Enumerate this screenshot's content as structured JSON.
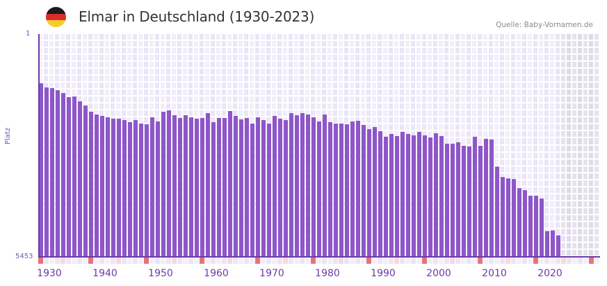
{
  "header": {
    "title": "Elmar in Deutschland (1930-2023)",
    "source": "Quelle: Baby-Vornamen.de",
    "flag_icon": "germany-flag-icon",
    "flag_colors": [
      "#1a1a1a",
      "#dd2a2a",
      "#f5cd2a"
    ]
  },
  "colors": {
    "bar": "#8e56c8",
    "axis": "#6b3aa6",
    "grid_a": "#f2eefb",
    "grid_b": "#ebe5f8",
    "future_a": "#e6e2ef",
    "future_b": "#dfdaea",
    "decade_marker": "#e6737a",
    "mid_marker": "#f5d8e0",
    "strip_a": "#f2eefb",
    "strip_b": "#ebe5f8"
  },
  "chart_data": {
    "type": "bar",
    "title": "Elmar in Deutschland (1930-2023)",
    "subtitle": "Quelle: Baby-Vornamen.de",
    "xlabel": "",
    "ylabel": "Platz",
    "y_inverted": true,
    "ylim": [
      1,
      5453
    ],
    "y_tick_labels": [
      "1",
      "5453"
    ],
    "x_tick_labels": [
      "1930",
      "1940",
      "1950",
      "1960",
      "1970",
      "1980",
      "1990",
      "2000",
      "2010",
      "2020"
    ],
    "x_range": [
      1930,
      2030
    ],
    "grid": true,
    "legend": null,
    "categories": [
      1930,
      1931,
      1932,
      1933,
      1934,
      1935,
      1936,
      1937,
      1938,
      1939,
      1940,
      1941,
      1942,
      1943,
      1944,
      1945,
      1946,
      1947,
      1948,
      1949,
      1950,
      1951,
      1952,
      1953,
      1954,
      1955,
      1956,
      1957,
      1958,
      1959,
      1960,
      1961,
      1962,
      1963,
      1964,
      1965,
      1966,
      1967,
      1968,
      1969,
      1970,
      1971,
      1972,
      1973,
      1974,
      1975,
      1976,
      1977,
      1978,
      1979,
      1980,
      1981,
      1982,
      1983,
      1984,
      1985,
      1986,
      1987,
      1988,
      1989,
      1990,
      1991,
      1992,
      1993,
      1994,
      1995,
      1996,
      1997,
      1998,
      1999,
      2000,
      2001,
      2002,
      2003,
      2004,
      2005,
      2006,
      2007,
      2008,
      2009,
      2010,
      2011,
      2012,
      2013,
      2014,
      2015,
      2016,
      2017,
      2018,
      2019,
      2020,
      2021,
      2022,
      2023
    ],
    "values": [
      1207,
      1309,
      1326,
      1377,
      1445,
      1547,
      1530,
      1649,
      1751,
      1904,
      1972,
      2006,
      2040,
      2074,
      2074,
      2108,
      2159,
      2108,
      2193,
      2210,
      2040,
      2142,
      1904,
      1870,
      1989,
      2057,
      1989,
      2040,
      2074,
      2057,
      1938,
      2159,
      2057,
      2057,
      1887,
      2006,
      2091,
      2057,
      2193,
      2040,
      2108,
      2193,
      2006,
      2074,
      2108,
      1938,
      1989,
      1938,
      1972,
      2040,
      2142,
      1972,
      2159,
      2193,
      2193,
      2210,
      2142,
      2125,
      2227,
      2329,
      2278,
      2380,
      2516,
      2448,
      2499,
      2397,
      2448,
      2482,
      2397,
      2482,
      2533,
      2431,
      2499,
      2686,
      2686,
      2652,
      2737,
      2754,
      2516,
      2737,
      2567,
      2584,
      3246,
      3501,
      3535,
      3552,
      3772,
      3823,
      3959,
      3959,
      4027,
      4825,
      4808,
      4927
    ]
  },
  "y_axis": {
    "top_label": "1",
    "bottom_label": "5453",
    "title": "Platz"
  },
  "x_axis": {
    "labels": [
      "1930",
      "1940",
      "1950",
      "1960",
      "1970",
      "1980",
      "1990",
      "2000",
      "2010",
      "2020"
    ]
  }
}
